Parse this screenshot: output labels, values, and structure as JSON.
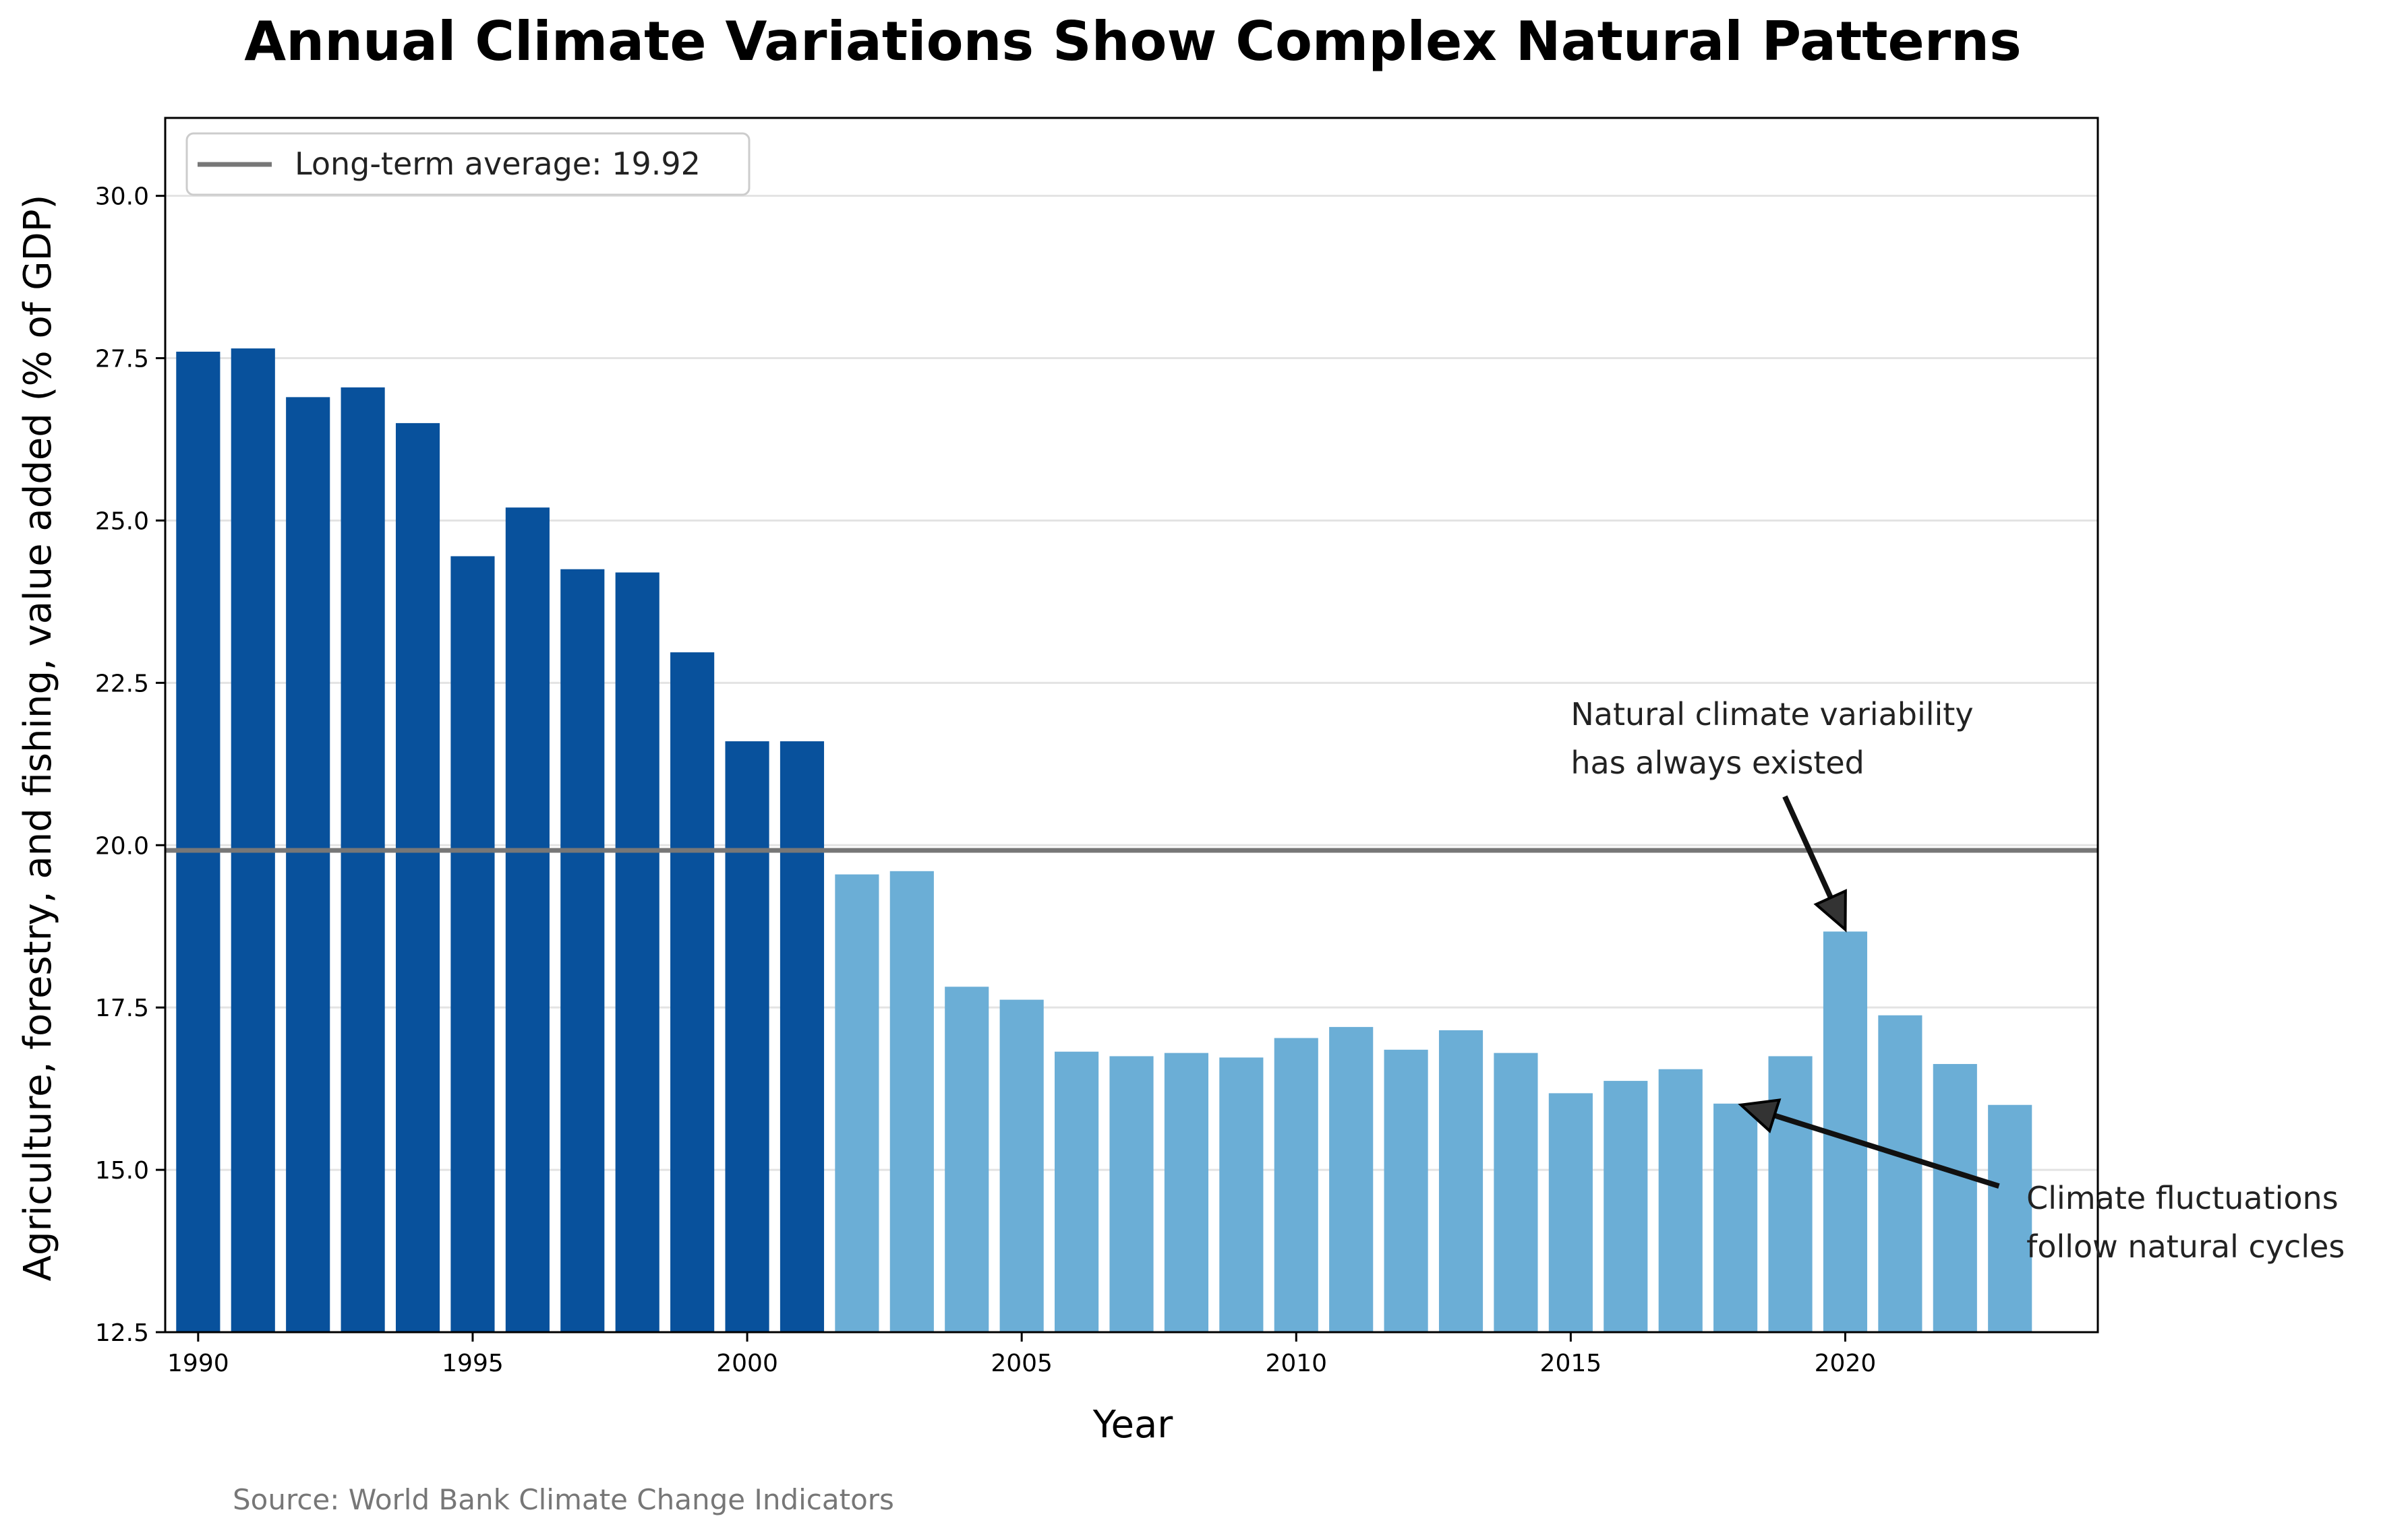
{
  "chart_data": {
    "type": "bar",
    "title": "Annual Climate Variations Show Complex Natural Patterns",
    "xlabel": "Year",
    "ylabel": "Agriculture, forestry, and fishing, value added (% of GDP)",
    "source": "Source: World Bank Climate Change Indicators",
    "x": [
      1990,
      1991,
      1992,
      1993,
      1994,
      1995,
      1996,
      1997,
      1998,
      1999,
      2000,
      2001,
      2002,
      2003,
      2004,
      2005,
      2006,
      2007,
      2008,
      2009,
      2010,
      2011,
      2012,
      2013,
      2014,
      2015,
      2016,
      2017,
      2018,
      2019,
      2020,
      2021,
      2022,
      2023
    ],
    "values": [
      27.6,
      27.65,
      26.9,
      27.05,
      26.5,
      24.45,
      25.2,
      24.25,
      24.2,
      22.97,
      21.6,
      21.6,
      19.55,
      19.6,
      17.82,
      17.62,
      16.82,
      16.75,
      16.8,
      16.73,
      17.03,
      17.2,
      16.85,
      17.15,
      16.8,
      16.18,
      16.37,
      16.55,
      16.02,
      16.75,
      18.67,
      17.38,
      16.63,
      16.0
    ],
    "xlim": [
      1989.4,
      2024.6
    ],
    "ylim": [
      12.5,
      31.2
    ],
    "xticks": [
      1990,
      1995,
      2000,
      2005,
      2010,
      2015,
      2020
    ],
    "xtick_labels": [
      "1990",
      "1995",
      "2000",
      "2005",
      "2010",
      "2015",
      "2020"
    ],
    "yticks": [
      12.5,
      15.0,
      17.5,
      20.0,
      22.5,
      25.0,
      27.5,
      30.0
    ],
    "ytick_labels": [
      "12.5",
      "15.0",
      "17.5",
      "20.0",
      "22.5",
      "25.0",
      "27.5",
      "30.0"
    ],
    "grid": "horizontal",
    "average": {
      "value": 19.92,
      "legend_label": "Long-term average: 19.92",
      "color": "#777777"
    },
    "legend_position": "top-left",
    "colors": {
      "early_bars": "#08519c",
      "late_bars": "#6baed6",
      "split_year": 2001
    },
    "annotations": [
      {
        "lines": [
          "Natural climate variability",
          "has always existed"
        ],
        "text_at": [
          2015,
          21.85
        ],
        "arrow_from": [
          2018.9,
          20.75
        ],
        "arrow_to": [
          2020.0,
          18.7
        ]
      },
      {
        "lines": [
          "Climate fluctuations",
          "follow natural cycles"
        ],
        "text_at": [
          2023.3,
          14.4
        ],
        "arrow_from": [
          2022.8,
          14.75
        ],
        "arrow_to": [
          2018.1,
          16.0
        ]
      }
    ]
  }
}
